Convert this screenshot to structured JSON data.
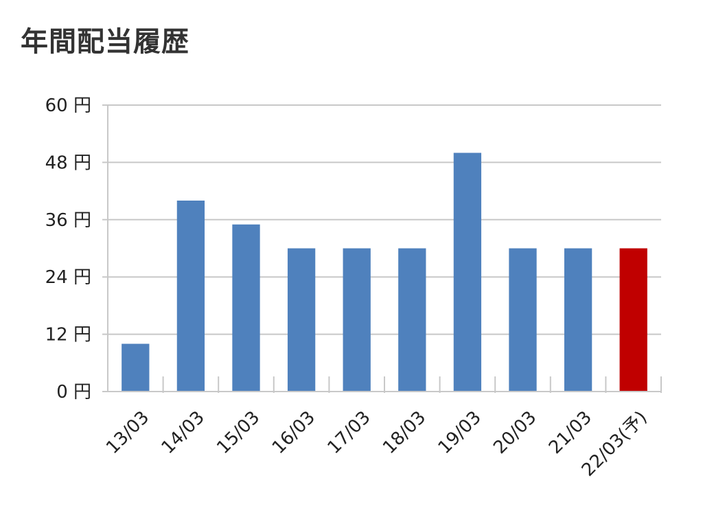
{
  "title": "年間配当履歴",
  "colors": {
    "bar_default": "#4f81bd",
    "bar_forecast": "#c00000",
    "grid": "#c8c8c8"
  },
  "chart_data": {
    "type": "bar",
    "title": "年間配当履歴",
    "xlabel": "",
    "ylabel": "",
    "categories": [
      "13/03",
      "14/03",
      "15/03",
      "16/03",
      "17/03",
      "18/03",
      "19/03",
      "20/03",
      "21/03",
      "22/03(予)"
    ],
    "values": [
      10,
      40,
      35,
      30,
      30,
      30,
      50,
      30,
      30,
      30
    ],
    "forecast_index": 9,
    "ylim": [
      0,
      60
    ],
    "yticks": [
      0,
      12,
      24,
      36,
      48,
      60
    ],
    "ytick_labels": [
      "0 円",
      "12 円",
      "24 円",
      "36 円",
      "48 円",
      "60 円"
    ],
    "grid": true,
    "legend": "none"
  }
}
